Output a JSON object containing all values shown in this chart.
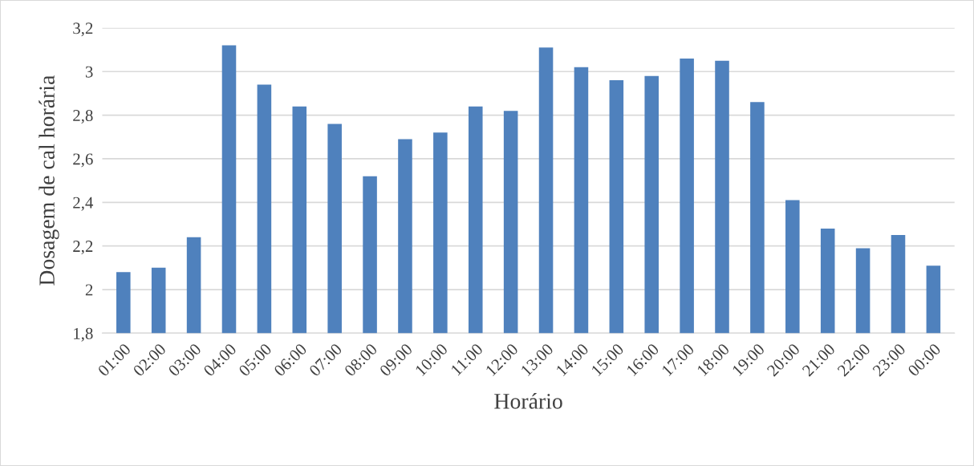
{
  "chart_data": {
    "type": "bar",
    "xlabel": "Horário",
    "ylabel": "Dosagem de cal horária",
    "categories": [
      "01:00",
      "02:00",
      "03:00",
      "04:00",
      "05:00",
      "06:00",
      "07:00",
      "08:00",
      "09:00",
      "10:00",
      "11:00",
      "12:00",
      "13:00",
      "14:00",
      "15:00",
      "16:00",
      "17:00",
      "18:00",
      "19:00",
      "20:00",
      "21:00",
      "22:00",
      "23:00",
      "00:00"
    ],
    "values": [
      2.08,
      2.1,
      2.24,
      3.12,
      2.94,
      2.84,
      2.76,
      2.52,
      2.69,
      2.72,
      2.84,
      2.82,
      3.11,
      3.02,
      2.96,
      2.98,
      3.06,
      3.05,
      2.86,
      2.41,
      2.28,
      2.19,
      2.25,
      2.11
    ],
    "color": "#4f81bd",
    "ylim": [
      1.8,
      3.2
    ],
    "yticks": [
      {
        "value": 1.8,
        "label": "1,8"
      },
      2,
      {
        "value": 2.2,
        "label": "2,2"
      },
      {
        "value": 2.4,
        "label": "2,4"
      },
      {
        "value": 2.6,
        "label": "2,6"
      },
      {
        "value": 2.8,
        "label": "2,8"
      },
      3,
      {
        "value": 3.2,
        "label": "3,2"
      }
    ],
    "grid": "y",
    "legend": false
  }
}
